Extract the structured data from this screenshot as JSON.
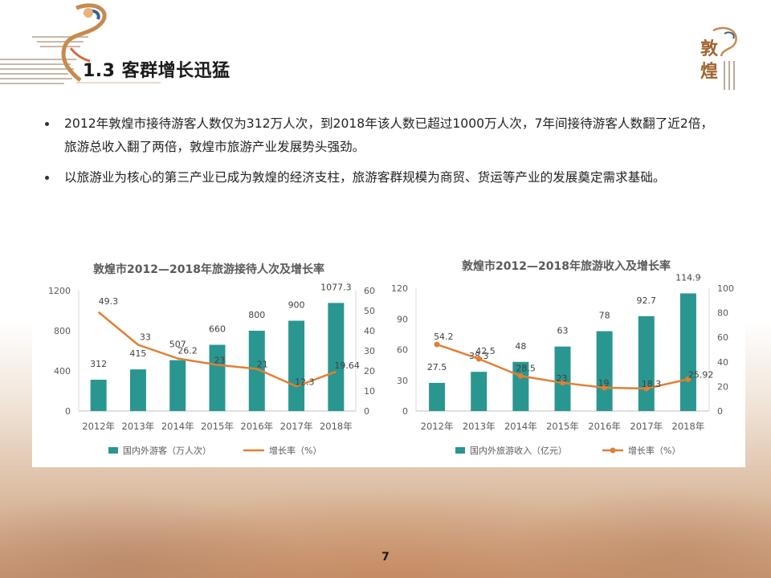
{
  "slide": {
    "title": "1.3 客群增长迅猛",
    "page_number": "7",
    "bullets": [
      "2012年敦煌市接待游客人数仅为312万人次，到2018年该人数已超过1000万人次，7年间接待游客人数翻了近2倍，旅游总收入翻了两倍，敦煌市旅游产业发展势头强劲。",
      "以旅游业为核心的第三产业已成为敦煌的经济支柱，旅游客群规模为商贸、货运等产业的发展奠定需求基础。"
    ],
    "logo_text": "敦煌"
  },
  "colors": {
    "bar": "#2a9690",
    "line": "#e07f35",
    "axis_text": "#595959",
    "title_text": "#595959"
  },
  "chart_data": [
    {
      "type": "bar",
      "title": "敦煌市2012—2018年旅游接待人次及增长率",
      "categories": [
        "2012年",
        "2013年",
        "2014年",
        "2015年",
        "2016年",
        "2017年",
        "2018年"
      ],
      "series": [
        {
          "name": "国内外游客（万人次）",
          "type": "bar",
          "axis": "left",
          "values": [
            312,
            415,
            507,
            660,
            800,
            900,
            1077.3
          ]
        },
        {
          "name": "增长率（%）",
          "type": "line",
          "axis": "right",
          "values": [
            49.3,
            33,
            26.2,
            23,
            21,
            12.3,
            19.64
          ]
        }
      ],
      "ylim_left": [
        0,
        1200
      ],
      "yticks_left": [
        0,
        400,
        800,
        1200
      ],
      "ylim_right": [
        0,
        60
      ],
      "yticks_right": [
        0,
        10,
        20,
        30,
        40,
        50,
        60
      ],
      "markers": false,
      "legend": "bottom"
    },
    {
      "type": "bar",
      "title": "敦煌市2012—2018年旅游收入及增长率",
      "categories": [
        "2012年",
        "2013年",
        "2014年",
        "2015年",
        "2016年",
        "2017年",
        "2018年"
      ],
      "series": [
        {
          "name": "国内外旅游收入（亿元）",
          "type": "bar",
          "axis": "left",
          "values": [
            27.5,
            38.3,
            48,
            63,
            78,
            92.7,
            114.9
          ]
        },
        {
          "name": "增长率（%）",
          "type": "line",
          "axis": "right",
          "values": [
            54.2,
            42.5,
            28.5,
            23,
            19,
            18.3,
            25.92
          ]
        }
      ],
      "ylim_left": [
        0,
        120
      ],
      "yticks_left": [
        0,
        30,
        60,
        90,
        120
      ],
      "ylim_right": [
        0,
        100
      ],
      "yticks_right": [
        0,
        20,
        40,
        60,
        80,
        100
      ],
      "markers": true,
      "legend": "bottom"
    }
  ]
}
